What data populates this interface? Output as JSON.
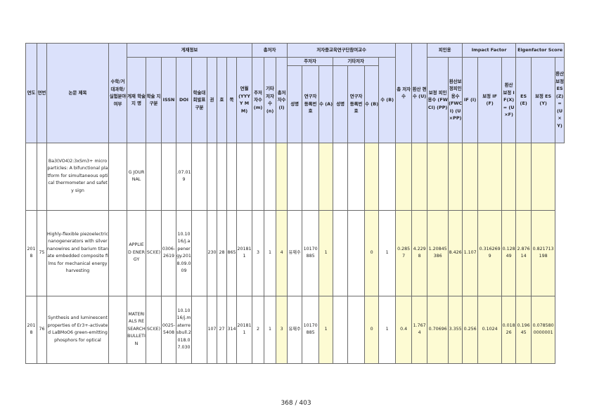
{
  "headers": {
    "year": "연도",
    "seq": "연번",
    "paper_title": "논문 제목",
    "math": "수학/거대과학/실험분야여부",
    "pub_info": "게재정보",
    "journal": "게재 학술지 명",
    "acad_type": "학술 지 구분",
    "issn": "ISSN",
    "doi": "DOI",
    "acad_cls": "학술대회발표 구분",
    "vol": "권",
    "no": "호",
    "page": "쪽",
    "pubdate": "연월 (YYYY MM)",
    "total_authors": "총저자",
    "main_authors_n": "주저자수 (m)",
    "other_authors_n": "기타저자수 (n)",
    "all_authors_n": "총저자수 (l)",
    "participating": "저자중교육연구단참여교수",
    "main_group": "주저자",
    "other_group": "기타저자",
    "name": "성명",
    "reg_no": "연구자 등록번호",
    "count_a": "수 (A)",
    "count_b": "수 (B)",
    "total_count": "총 저자 수",
    "conv_count": "환산 편수 (U)",
    "citations": "피인용",
    "corr_cites": "보정 피인용수 (FWCI) (PP)",
    "conv_corr_cites": "환산보 정피인 용수 (FWCI) (U×PP)",
    "impact_factor": "Impact Factor",
    "if": "IF (I)",
    "corr_if": "보정 IF (F)",
    "conv_if": "환산 보정 IF(X) = (U×F)",
    "eigen": "Eigenfactor Score",
    "es": "ES (E)",
    "corr_es": "보정 ES (Y)",
    "conv_es": "환산 보정 ES(Z) =(U×Y)"
  },
  "rows": [
    {
      "year": "",
      "seq": "",
      "title": "Ba3(VO4)2:3xSm3+ microparticles: A bifunctional platform for simultaneous optical thermometer and safety sign",
      "math": "",
      "journal": "G JOURNAL",
      "acad_type": "",
      "issn": "",
      "doi": ".07.019",
      "acad_cls": "",
      "vol": "",
      "no": "",
      "page": "",
      "pubdate": "",
      "m": "",
      "n": "",
      "l": "",
      "main_name": "",
      "main_reg": "",
      "a": "",
      "other_name": "",
      "other_reg": "",
      "b": "",
      "total": "",
      "u": "",
      "pp": "",
      "upp": "",
      "if": "",
      "f": "",
      "x": "",
      "e": "",
      "y": "",
      "z": ""
    },
    {
      "year": "2018",
      "seq": "75",
      "title": "Highly-flexible piezoelectric nanogenerators with silver nanowires and barium titanate embedded composite films for mechanical energy harvesting",
      "math": "",
      "journal": "APPLIED ENERGY",
      "acad_type": "SCI(E)",
      "issn": "0306-2619",
      "doi": "10.1016/j.apenergy.2018.09.009",
      "acad_cls": "",
      "vol": "230",
      "no": "28",
      "page": "865",
      "pubdate": "201811",
      "m": "3",
      "n": "1",
      "l": "4",
      "main_name": "유재수",
      "main_reg": "10170885",
      "a": "1",
      "other_name": "",
      "other_reg": "",
      "b": "0",
      "total": "1",
      "u": "0.2857",
      "pp": "4.2298",
      "upp": "1.20845386",
      "if": "8.426",
      "f": "1.107",
      "x": "0.3162699",
      "e": "0.12849",
      "y": "2.87614",
      "z": "0.821713198"
    },
    {
      "year": "2018",
      "seq": "76",
      "title": "Synthesis and luminescent properties of Er3+-activated LaBMoO6 green-emitting phosphors for optical",
      "math": "",
      "journal": "MATERIALS RESEARCH BULLETIN",
      "acad_type": "SCI(E)",
      "issn": "0025-5408",
      "doi": "10.1016/j.materresbull.2018.07.030",
      "acad_cls": "",
      "vol": "107",
      "no": "27",
      "page": "314",
      "pubdate": "201811",
      "m": "2",
      "n": "1",
      "l": "3",
      "main_name": "유재수",
      "main_reg": "10170885",
      "a": "1",
      "other_name": "",
      "other_reg": "",
      "b": "0",
      "total": "1",
      "u": "0.4",
      "pp": "1.7674",
      "upp": "0.70696",
      "if": "3.355",
      "f": "0.256",
      "x": "0.1024",
      "e": "0.01826",
      "y": "0.19645",
      "z": "0.0785800000001"
    }
  ],
  "page_number": "368 / 403"
}
